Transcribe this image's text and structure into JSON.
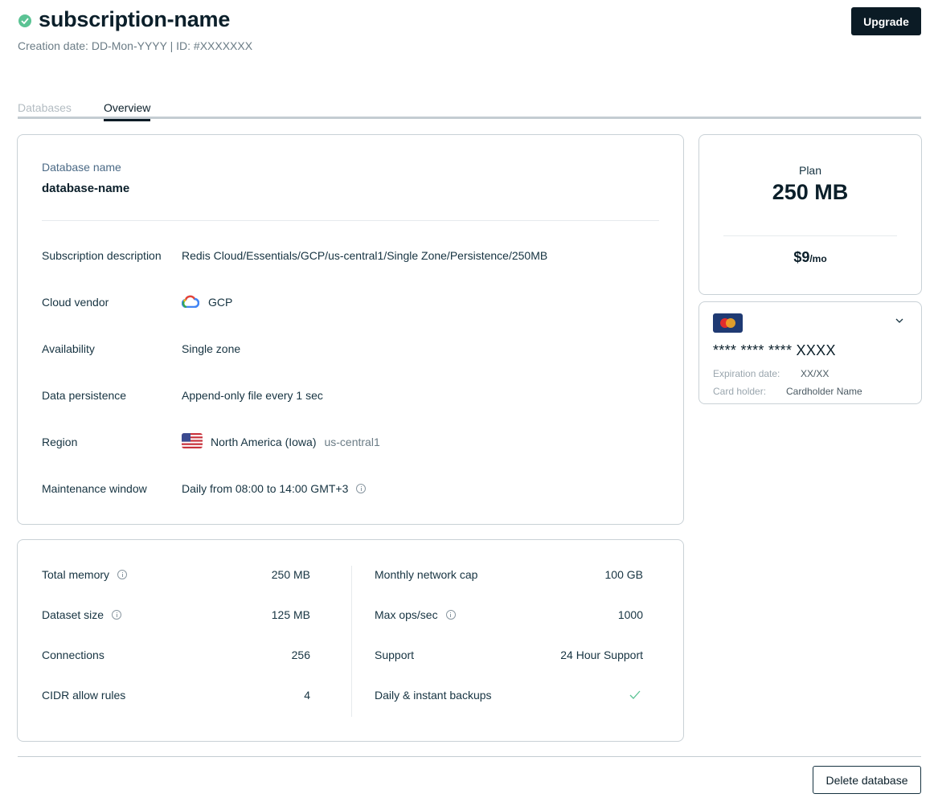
{
  "header": {
    "title": "subscription-name",
    "subtitle": "Creation date: DD-Mon-YYYY | ID: #XXXXXXX",
    "upgrade_label": "Upgrade"
  },
  "tabs": [
    {
      "label": "Databases",
      "active": false
    },
    {
      "label": "Overview",
      "active": true
    }
  ],
  "database": {
    "label": "Database name",
    "name": "database-name",
    "rows": [
      {
        "label": "Subscription description",
        "value": "Redis Cloud/Essentials/GCP/us-central1/Single Zone/Persistence/250MB"
      },
      {
        "label": "Cloud vendor",
        "value": "GCP",
        "icon": "gcp-icon"
      },
      {
        "label": "Availability",
        "value": "Single zone"
      },
      {
        "label": "Data persistence",
        "value": "Append-only file every 1 sec"
      },
      {
        "label": "Region",
        "value": "North America (Iowa)",
        "code": "us-central1",
        "icon": "us-flag-icon"
      },
      {
        "label": "Maintenance window",
        "value": "Daily from 08:00 to 14:00 GMT+3",
        "icon": "info-icon"
      }
    ]
  },
  "stats": {
    "left": [
      {
        "label": "Total memory",
        "value": "250 MB",
        "info": true
      },
      {
        "label": "Dataset size",
        "value": "125 MB",
        "info": true
      },
      {
        "label": "Connections",
        "value": "256"
      },
      {
        "label": "CIDR allow rules",
        "value": "4"
      }
    ],
    "right": [
      {
        "label": "Monthly network cap",
        "value": "100 GB"
      },
      {
        "label": "Max ops/sec",
        "value": "1000",
        "info": true
      },
      {
        "label": "Support",
        "value": "24 Hour Support"
      },
      {
        "label": "Daily & instant backups",
        "value": "",
        "icon": "check-icon"
      }
    ]
  },
  "plan": {
    "label": "Plan",
    "size": "250 MB",
    "price": "$9",
    "price_unit": "/mo"
  },
  "payment": {
    "icon": "mastercard-icon",
    "number": "**** **** **** XXXX",
    "expiration_label": "Expiration date:",
    "expiration_value": "XX/XX",
    "holder_label": "Card holder:",
    "holder_value": "Cardholder Name"
  },
  "footer": {
    "delete_label": "Delete database"
  },
  "colors": {
    "accent_dark": "#0b1b25",
    "status_green": "#5bc394",
    "border": "#c9d1d6"
  }
}
